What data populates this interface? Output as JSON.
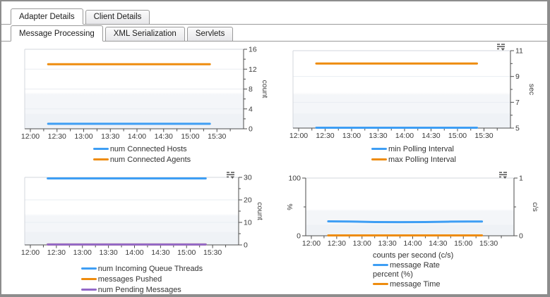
{
  "tabs": {
    "level1": [
      {
        "label": "Adapter Details",
        "active": true
      },
      {
        "label": "Client Details",
        "active": false
      }
    ],
    "level2": [
      {
        "label": "Message Processing",
        "active": true
      },
      {
        "label": "XML Serialization",
        "active": false
      },
      {
        "label": "Servlets",
        "active": false
      }
    ]
  },
  "colors": {
    "blue": "#3E9EF4",
    "orange": "#EE8C0E",
    "purple": "#9268C8",
    "axis": "#4d4d4d",
    "grid": "#e9edf2",
    "plot_border": "#d3d7dd",
    "band_light": "#f4f6f9",
    "band_lower": "#eff2f6",
    "tick_text": "#3c3c3c",
    "legend_text": "#333333",
    "icon": "#5a5a5a"
  },
  "chart_data": [
    {
      "id": "connected-hosts-agents",
      "type": "line",
      "x_tick_labels": [
        "12:00",
        "12:30",
        "13:00",
        "13:30",
        "14:00",
        "14:30",
        "15:00",
        "15:30"
      ],
      "x_domain_minutes": 240,
      "x_minor_interval_min": 15,
      "y_axis": {
        "side": "right",
        "min": 0,
        "max": 16,
        "major_step": 4,
        "minor_step": 2,
        "title": "count"
      },
      "series": [
        {
          "name": "num Connected Hosts",
          "color_key": "blue",
          "value": 1,
          "span_minutes": [
            20,
            202
          ]
        },
        {
          "name": "num Connected Agents",
          "color_key": "orange",
          "value": 13,
          "span_minutes": [
            20,
            202
          ]
        }
      ],
      "has_menu_icon": false
    },
    {
      "id": "polling-interval",
      "type": "line",
      "x_tick_labels": [
        "12:00",
        "12:30",
        "13:00",
        "13:30",
        "14:00",
        "14:30",
        "15:00",
        "15:30"
      ],
      "x_domain_minutes": 240,
      "x_minor_interval_min": 15,
      "y_axis": {
        "side": "right",
        "min": 5,
        "max": 11,
        "major_step": 2,
        "minor_step": 1,
        "title": "sec"
      },
      "series": [
        {
          "name": "min Polling Interval",
          "color_key": "blue",
          "value": 5,
          "span_minutes": [
            20,
            202
          ]
        },
        {
          "name": "max Polling Interval",
          "color_key": "orange",
          "value": 10,
          "span_minutes": [
            20,
            202
          ]
        }
      ],
      "has_menu_icon": true
    },
    {
      "id": "queue-messages",
      "type": "line",
      "x_tick_labels": [
        "12:00",
        "12:30",
        "13:00",
        "13:30",
        "14:00",
        "14:30",
        "15:00",
        "15:30"
      ],
      "x_domain_minutes": 240,
      "x_minor_interval_min": 15,
      "y_axis": {
        "side": "right",
        "min": 0,
        "max": 30,
        "major_step": 10,
        "minor_step": 5,
        "title": "count"
      },
      "series": [
        {
          "name": "num Incoming Queue Threads",
          "color_key": "blue",
          "value": 30,
          "span_minutes": [
            20,
            202
          ]
        },
        {
          "name": "messages Pushed",
          "color_key": "orange",
          "value": 0.2,
          "span_minutes": [
            20,
            202
          ]
        },
        {
          "name": "num Pending Messages",
          "color_key": "purple",
          "value": 0.2,
          "span_minutes": [
            20,
            202
          ]
        }
      ],
      "has_menu_icon": true
    },
    {
      "id": "message-rate-time",
      "type": "line",
      "x_tick_labels": [
        "12:00",
        "12:30",
        "13:00",
        "13:30",
        "14:00",
        "14:30",
        "15:00",
        "15:30"
      ],
      "x_domain_minutes": 240,
      "x_minor_interval_min": 15,
      "y_axis_left": {
        "side": "left",
        "min": 0,
        "max": 100,
        "major_step": 100,
        "minor_step": 50,
        "title": "%"
      },
      "y_axis": {
        "side": "right",
        "min": 0,
        "max": 1,
        "major_step": 1,
        "minor_step": 0.5,
        "title": "c/s"
      },
      "series": [
        {
          "name": "message Rate",
          "color_key": "blue",
          "axis": "right",
          "x_minutes": [
            20,
            45,
            75,
            105,
            135,
            165,
            185,
            202
          ],
          "values": [
            0.25,
            0.247,
            0.238,
            0.236,
            0.238,
            0.245,
            0.248,
            0.248
          ]
        },
        {
          "name": "message Time",
          "color_key": "orange",
          "axis": "left",
          "value": 0.5,
          "span_minutes": [
            20,
            202
          ]
        }
      ],
      "legend_groups": [
        {
          "header": "counts per second (c/s)",
          "items": [
            {
              "name": "message Rate",
              "color_key": "blue"
            }
          ]
        },
        {
          "header": "percent (%)",
          "items": [
            {
              "name": "message Time",
              "color_key": "orange"
            }
          ]
        }
      ],
      "has_menu_icon": true
    }
  ]
}
